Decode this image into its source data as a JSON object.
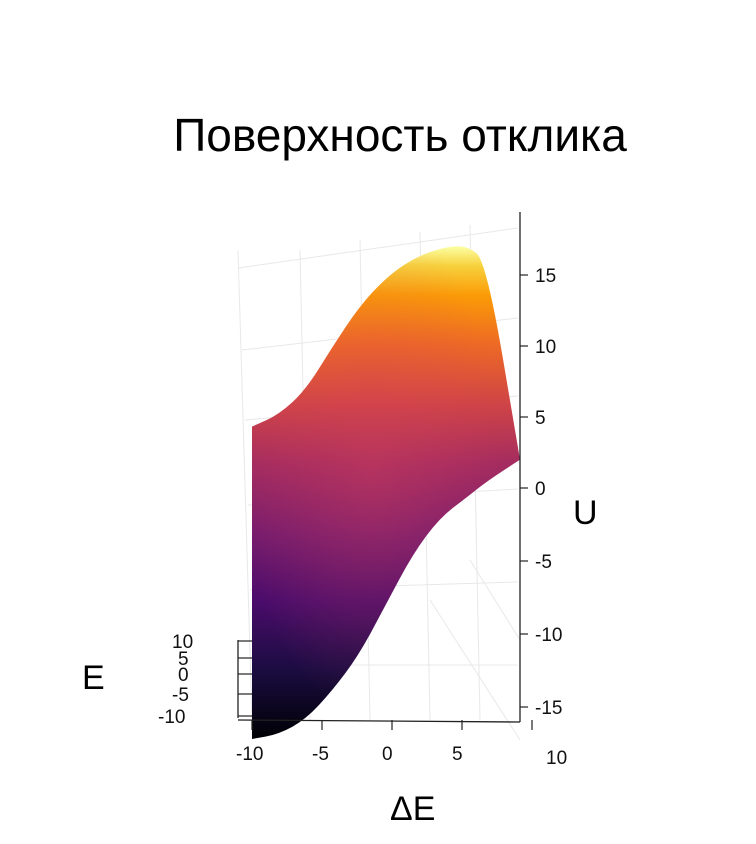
{
  "chart_data": {
    "type": "surface",
    "title": "Поверхность отклика",
    "xlabel": "ΔE",
    "ylabel": "E",
    "zlabel": "U",
    "x_ticks": [
      "-10",
      "-5",
      "0",
      "5",
      "10"
    ],
    "y_ticks": [
      "10",
      "5",
      "0",
      "-5",
      "-10"
    ],
    "z_ticks": [
      "15",
      "10",
      "5",
      "0",
      "-5",
      "-10",
      "-15"
    ],
    "x_range": [
      -10,
      10
    ],
    "y_range": [
      -10,
      10
    ],
    "z_range": [
      -17,
      17
    ],
    "colorscale": "inferno",
    "grid": true,
    "edge_curves": {
      "x": [
        -10,
        -8,
        -6,
        -4,
        -2,
        0,
        2,
        4,
        6,
        7.5,
        10
      ],
      "upper_z": [
        4.7,
        5.5,
        7.2,
        10.2,
        13.0,
        15.0,
        16.3,
        17.0,
        17.2,
        16.0,
        2.0
      ],
      "lower_z": [
        -17.3,
        -17.0,
        -16.0,
        -14.0,
        -11.5,
        -8.0,
        -4.5,
        -2.0,
        -0.6,
        0.5,
        2.0
      ]
    }
  }
}
